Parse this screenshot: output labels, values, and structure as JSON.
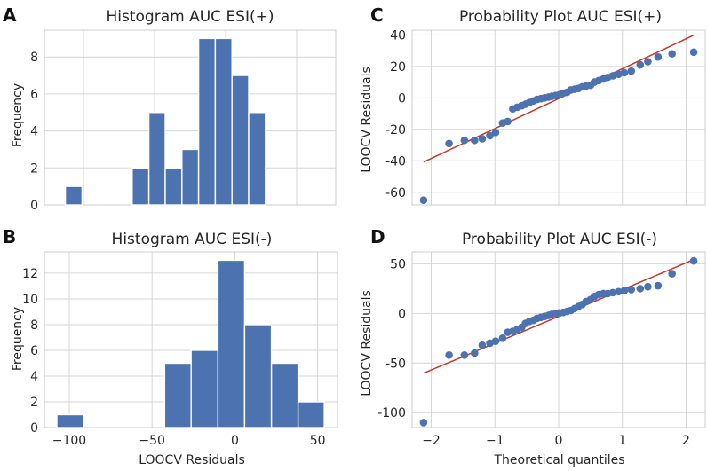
{
  "colors": {
    "bar": "#4c72b0",
    "point": "#4c72b0",
    "fit_line": "#c0392b",
    "grid": "#d6d6d6",
    "spine": "#cccccc"
  },
  "chart_data": [
    {
      "panel": "A",
      "type": "bar",
      "title": "Histogram AUC ESI(+)",
      "xlabel": "",
      "ylabel": "Frequency",
      "xlim": [
        -71,
        11
      ],
      "ylim": [
        0,
        9.45
      ],
      "xticks_grid": [
        -60,
        -40,
        -20,
        0
      ],
      "yticks": [
        0,
        2,
        4,
        6,
        8
      ],
      "bins": [
        {
          "x0": -65.1,
          "x1": -60.4,
          "count": 1
        },
        {
          "x0": -46.3,
          "x1": -41.6,
          "count": 2
        },
        {
          "x0": -41.6,
          "x1": -37.0,
          "count": 5
        },
        {
          "x0": -37.0,
          "x1": -32.3,
          "count": 2
        },
        {
          "x0": -32.3,
          "x1": -27.6,
          "count": 3
        },
        {
          "x0": -27.6,
          "x1": -22.9,
          "count": 9
        },
        {
          "x0": -22.9,
          "x1": -18.2,
          "count": 9
        },
        {
          "x0": -18.2,
          "x1": -13.5,
          "count": 7
        },
        {
          "x0": -13.5,
          "x1": -8.8,
          "count": 5
        }
      ]
    },
    {
      "panel": "B",
      "type": "bar",
      "title": "Histogram AUC ESI(-)",
      "xlabel": "LOOCV Residuals",
      "ylabel": "Frequency",
      "xlim": [
        -115,
        62
      ],
      "ylim": [
        0,
        13.65
      ],
      "xticks": [
        -100,
        -50,
        0,
        50
      ],
      "yticks": [
        0,
        2,
        4,
        6,
        8,
        10,
        12
      ],
      "bins": [
        {
          "x0": -107.5,
          "x1": -91.3,
          "count": 1
        },
        {
          "x0": -42.4,
          "x1": -26.4,
          "count": 5
        },
        {
          "x0": -26.4,
          "x1": -10.2,
          "count": 6
        },
        {
          "x0": -10.2,
          "x1": 5.9,
          "count": 13
        },
        {
          "x0": 5.9,
          "x1": 22.1,
          "count": 8
        },
        {
          "x0": 22.1,
          "x1": 38.2,
          "count": 5
        },
        {
          "x0": 38.2,
          "x1": 54.0,
          "count": 2
        }
      ]
    },
    {
      "panel": "C",
      "type": "scatter",
      "title": "Probability Plot AUC ESI(+)",
      "xlabel": "",
      "ylabel": "LOOCV Residuals",
      "xlim": [
        -2.3,
        2.3
      ],
      "ylim": [
        -68,
        43
      ],
      "xticks_grid": [
        -2,
        -1,
        0,
        1,
        2
      ],
      "yticks": [
        -60,
        -40,
        -20,
        0,
        20,
        40
      ],
      "fit_line": {
        "slope": 19.0,
        "intercept": -0.5
      },
      "points": [
        [
          -2.12,
          -65
        ],
        [
          -1.72,
          -29
        ],
        [
          -1.48,
          -27
        ],
        [
          -1.32,
          -27
        ],
        [
          -1.2,
          -26
        ],
        [
          -1.08,
          -24
        ],
        [
          -0.99,
          -22
        ],
        [
          -0.88,
          -16
        ],
        [
          -0.8,
          -15
        ],
        [
          -0.72,
          -7
        ],
        [
          -0.65,
          -6
        ],
        [
          -0.58,
          -5
        ],
        [
          -0.52,
          -4
        ],
        [
          -0.46,
          -3
        ],
        [
          -0.4,
          -2
        ],
        [
          -0.34,
          -1
        ],
        [
          -0.28,
          -0.5
        ],
        [
          -0.22,
          0
        ],
        [
          -0.16,
          0.5
        ],
        [
          -0.11,
          1
        ],
        [
          -0.05,
          1.5
        ],
        [
          0.01,
          2
        ],
        [
          0.07,
          3
        ],
        [
          0.13,
          3.5
        ],
        [
          0.19,
          5
        ],
        [
          0.25,
          5.5
        ],
        [
          0.31,
          6
        ],
        [
          0.37,
          7
        ],
        [
          0.43,
          7.5
        ],
        [
          0.5,
          8
        ],
        [
          0.56,
          10
        ],
        [
          0.63,
          11
        ],
        [
          0.7,
          12
        ],
        [
          0.77,
          13
        ],
        [
          0.85,
          14
        ],
        [
          0.94,
          15
        ],
        [
          1.03,
          16
        ],
        [
          1.14,
          17
        ],
        [
          1.28,
          21
        ],
        [
          1.4,
          23
        ],
        [
          1.56,
          26
        ],
        [
          1.78,
          28
        ],
        [
          2.12,
          29
        ]
      ]
    },
    {
      "panel": "D",
      "type": "scatter",
      "title": "Probability Plot AUC ESI(-)",
      "xlabel": "Theoretical quantiles",
      "ylabel": "LOOCV Residuals",
      "xlim": [
        -2.3,
        2.3
      ],
      "ylim": [
        -115,
        62
      ],
      "xticks": [
        -2,
        -1,
        0,
        1,
        2
      ],
      "yticks": [
        -100,
        -50,
        0,
        50
      ],
      "fit_line": {
        "slope": 27.0,
        "intercept": -3.0
      },
      "points": [
        [
          -2.12,
          -110
        ],
        [
          -1.72,
          -42
        ],
        [
          -1.48,
          -42
        ],
        [
          -1.32,
          -40
        ],
        [
          -1.2,
          -32
        ],
        [
          -1.08,
          -30
        ],
        [
          -0.99,
          -28
        ],
        [
          -0.88,
          -25
        ],
        [
          -0.8,
          -19
        ],
        [
          -0.72,
          -18
        ],
        [
          -0.65,
          -16
        ],
        [
          -0.58,
          -14
        ],
        [
          -0.52,
          -10
        ],
        [
          -0.46,
          -8
        ],
        [
          -0.4,
          -7
        ],
        [
          -0.34,
          -5
        ],
        [
          -0.28,
          -4
        ],
        [
          -0.22,
          -3
        ],
        [
          -0.16,
          -2
        ],
        [
          -0.11,
          -1
        ],
        [
          -0.05,
          0
        ],
        [
          0.01,
          0.5
        ],
        [
          0.07,
          1
        ],
        [
          0.13,
          2
        ],
        [
          0.19,
          3
        ],
        [
          0.25,
          5
        ],
        [
          0.31,
          7
        ],
        [
          0.37,
          9
        ],
        [
          0.43,
          12
        ],
        [
          0.5,
          14
        ],
        [
          0.56,
          17
        ],
        [
          0.63,
          19
        ],
        [
          0.7,
          20
        ],
        [
          0.77,
          20
        ],
        [
          0.85,
          21
        ],
        [
          0.94,
          22
        ],
        [
          1.03,
          23
        ],
        [
          1.14,
          24
        ],
        [
          1.28,
          25
        ],
        [
          1.4,
          27
        ],
        [
          1.56,
          28
        ],
        [
          1.78,
          40
        ],
        [
          2.12,
          53
        ]
      ]
    }
  ],
  "panel_letters": [
    "A",
    "B",
    "C",
    "D"
  ]
}
